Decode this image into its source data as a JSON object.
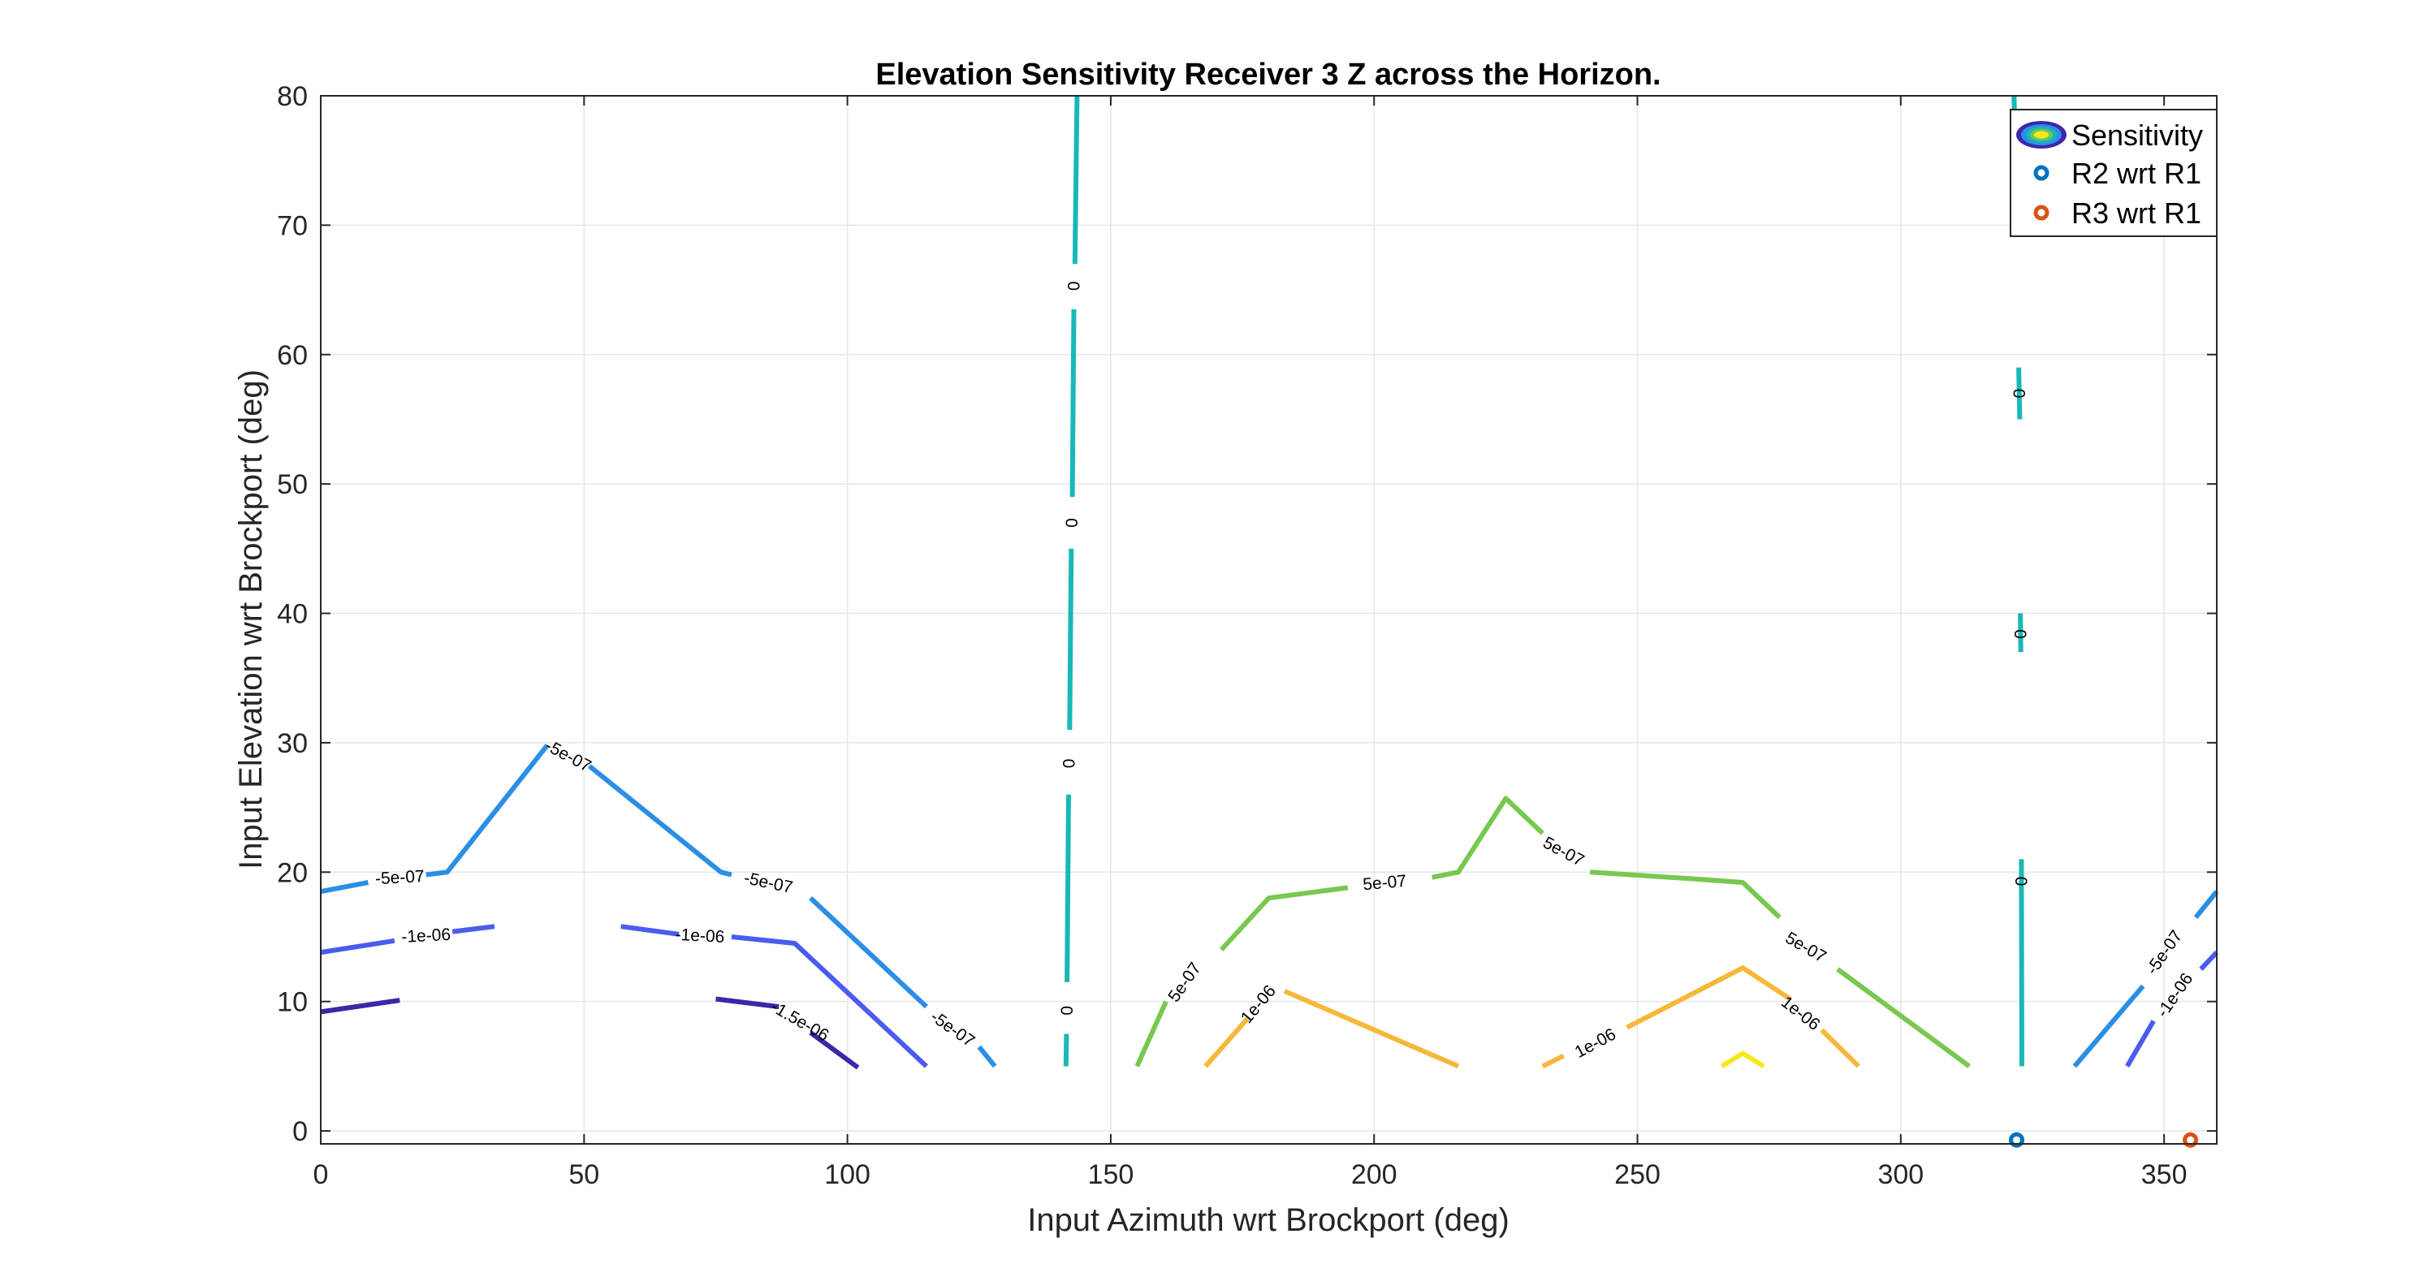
{
  "chart_data": {
    "type": "contour",
    "title": "Elevation Sensitivity Receiver 3 Z across the Horizon.",
    "xlabel": "Input Azimuth wrt Brockport (deg)",
    "ylabel": "Input Elevation wrt Brockport (deg)",
    "xlim": [
      0,
      360
    ],
    "ylim": [
      -1,
      80
    ],
    "xticks": [
      0,
      50,
      100,
      150,
      200,
      250,
      300,
      350
    ],
    "yticks": [
      0,
      10,
      20,
      30,
      40,
      50,
      60,
      70,
      80
    ],
    "grid": true,
    "legend": {
      "placement": "top-right",
      "entries": [
        "Sensitivity",
        "R2 wrt R1",
        "R3 wrt R1"
      ]
    },
    "contours": [
      {
        "level": "-1.5e-06",
        "color": "#3e26a8",
        "segments": [
          [
            [
              0,
              9.2
            ],
            [
              15,
              10.1
            ]
          ],
          [
            [
              75,
              10.2
            ],
            [
              87,
              9.6
            ]
          ],
          [
            [
              93,
              7.6
            ],
            [
              102,
              4.9
            ]
          ]
        ]
      },
      {
        "level": "-1e-06",
        "color": "#4a5cf0",
        "segments": [
          [
            [
              0,
              13.8
            ],
            [
              14,
              14.7
            ]
          ],
          [
            [
              25,
              15.4
            ],
            [
              33,
              15.8
            ]
          ],
          [
            [
              57,
              15.8
            ],
            [
              68,
              15.2
            ]
          ],
          [
            [
              78,
              15
            ],
            [
              90,
              14.5
            ],
            [
              115,
              5
            ]
          ],
          [
            [
              343,
              5
            ],
            [
              348,
              8.5
            ]
          ],
          [
            [
              357,
              12.5
            ],
            [
              360,
              13.8
            ]
          ]
        ]
      },
      {
        "level": "-5e-07",
        "color": "#2b8ee6",
        "segments": [
          [
            [
              0,
              18.5
            ],
            [
              9,
              19.2
            ]
          ],
          [
            [
              20,
              19.8
            ],
            [
              24,
              20
            ],
            [
              43,
              29.8
            ]
          ],
          [
            [
              51,
              28.2
            ],
            [
              76,
              20
            ],
            [
              78,
              19.8
            ]
          ],
          [
            [
              93,
              18
            ],
            [
              115,
              9.6
            ]
          ],
          [
            [
              125,
              6.5
            ],
            [
              128,
              5
            ]
          ],
          [
            [
              333,
              5
            ],
            [
              346,
              11.2
            ]
          ],
          [
            [
              356,
              16.5
            ],
            [
              360,
              18.5
            ]
          ]
        ]
      },
      {
        "level": "0",
        "color": "#18b8b8",
        "segments": [
          [
            [
              141.5,
              5
            ],
            [
              141.6,
              7.5
            ]
          ],
          [
            [
              141.7,
              11.5
            ],
            [
              142,
              26
            ]
          ],
          [
            [
              142.2,
              31
            ],
            [
              142.5,
              45
            ]
          ],
          [
            [
              142.7,
              49
            ],
            [
              143,
              63.5
            ]
          ],
          [
            [
              143.2,
              67
            ],
            [
              143.6,
              80
            ]
          ],
          [
            [
              321.5,
              80
            ],
            [
              322.2,
              70
            ]
          ],
          [
            [
              322.4,
              59
            ],
            [
              322.6,
              55
            ]
          ],
          [
            [
              322.7,
              40
            ],
            [
              322.8,
              37
            ]
          ],
          [
            [
              322.9,
              21
            ],
            [
              323,
              5
            ]
          ]
        ]
      },
      {
        "level": "5e-07",
        "color": "#78c850",
        "segments": [
          [
            [
              155,
              5
            ],
            [
              160.5,
              10
            ]
          ],
          [
            [
              171,
              14
            ],
            [
              180,
              18
            ],
            [
              195,
              18.8
            ]
          ],
          [
            [
              211,
              19.6
            ],
            [
              216,
              20
            ],
            [
              225,
              25.7
            ],
            [
              232,
              23
            ]
          ],
          [
            [
              241,
              20
            ],
            [
              260,
              19.5
            ],
            [
              270,
              19.2
            ],
            [
              277,
              16.5
            ]
          ],
          [
            [
              288,
              12.5
            ],
            [
              313,
              5
            ]
          ]
        ]
      },
      {
        "level": "1e-06",
        "color": "#f5b83a",
        "segments": [
          [
            [
              168,
              5
            ],
            [
              176,
              8.7
            ]
          ],
          [
            [
              183,
              10.8
            ],
            [
              216,
              5
            ]
          ],
          [
            [
              232,
              5
            ],
            [
              236,
              5.8
            ]
          ],
          [
            [
              248,
              8
            ],
            [
              270,
              12.6
            ],
            [
              279,
              10.2
            ]
          ],
          [
            [
              285,
              7.8
            ],
            [
              292,
              5
            ]
          ]
        ]
      },
      {
        "level": "1.5e-06",
        "color": "#f7e81d",
        "segments": [
          [
            [
              266,
              5
            ],
            [
              270,
              6
            ],
            [
              274,
              5
            ]
          ]
        ]
      }
    ],
    "contour_labels": [
      {
        "text": "-5e-07",
        "x": 15,
        "y": 19.6,
        "angle": -3
      },
      {
        "text": "-5e-07",
        "x": 47,
        "y": 29,
        "angle": 28
      },
      {
        "text": "-5e-07",
        "x": 85,
        "y": 19.2,
        "angle": 12
      },
      {
        "text": "-5e-07",
        "x": 120,
        "y": 7.9,
        "angle": 35
      },
      {
        "text": "-1e-06",
        "x": 20,
        "y": 15.1,
        "angle": -3
      },
      {
        "text": "-1e-06",
        "x": 72,
        "y": 15.1,
        "angle": 3
      },
      {
        "text": "-1.5e-06",
        "x": 91,
        "y": 8.5,
        "angle": 30
      },
      {
        "text": "0",
        "x": 143,
        "y": 65.3,
        "angle": -90
      },
      {
        "text": "0",
        "x": 142.6,
        "y": 47,
        "angle": -90
      },
      {
        "text": "0",
        "x": 142.1,
        "y": 28.4,
        "angle": -90
      },
      {
        "text": "0",
        "x": 141.7,
        "y": 9.3,
        "angle": -90
      },
      {
        "text": "0",
        "x": 322.5,
        "y": 57,
        "angle": -90
      },
      {
        "text": "0",
        "x": 322.8,
        "y": 38.4,
        "angle": -90
      },
      {
        "text": "0",
        "x": 322.9,
        "y": 19.3,
        "angle": -90
      },
      {
        "text": "5e-07",
        "x": 164,
        "y": 11.5,
        "angle": -55
      },
      {
        "text": "5e-07",
        "x": 202,
        "y": 19.2,
        "angle": -5
      },
      {
        "text": "5e-07",
        "x": 236,
        "y": 21.6,
        "angle": 28
      },
      {
        "text": "5e-07",
        "x": 282,
        "y": 14.2,
        "angle": 30
      },
      {
        "text": "1e-06",
        "x": 178,
        "y": 9.8,
        "angle": -50
      },
      {
        "text": "1e-06",
        "x": 242,
        "y": 6.8,
        "angle": -28
      },
      {
        "text": "1e-06",
        "x": 281,
        "y": 9.1,
        "angle": 38
      },
      {
        "text": "-5e-07",
        "x": 350,
        "y": 13.8,
        "angle": -55
      },
      {
        "text": "-1e-06",
        "x": 352,
        "y": 10.5,
        "angle": -55
      }
    ],
    "series": [
      {
        "name": "R2 wrt R1",
        "type": "scatter",
        "color": "#0072bd",
        "points": [
          [
            322,
            -0.7
          ]
        ]
      },
      {
        "name": "R3 wrt R1",
        "type": "scatter",
        "color": "#d95319",
        "points": [
          [
            355,
            -0.7
          ]
        ]
      }
    ]
  }
}
